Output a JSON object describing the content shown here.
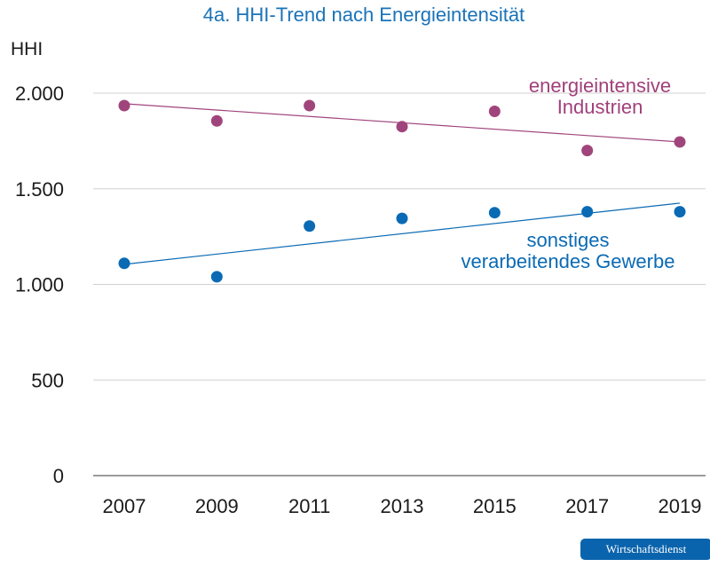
{
  "chart_data": {
    "type": "scatter",
    "title": "4a. HHI-Trend nach Energieintensität",
    "ylabel": "HHI",
    "xlabel": "",
    "x": [
      2007,
      2009,
      2011,
      2013,
      2015,
      2017,
      2019
    ],
    "x_tick_labels": [
      "2007",
      "2009",
      "2011",
      "2013",
      "2015",
      "2017",
      "2019"
    ],
    "ylim": [
      0,
      2000
    ],
    "y_ticks": [
      0,
      500,
      1000,
      1500,
      2000
    ],
    "y_tick_labels": [
      "0",
      "500",
      "1.000",
      "1.500",
      "2.000"
    ],
    "grid": "horizontal",
    "series": [
      {
        "name": "energieintensive Industrien",
        "label_lines": [
          "energieintensive",
          "Industrien"
        ],
        "color": "#a0457c",
        "values": [
          1935,
          1855,
          1935,
          1825,
          1905,
          1700,
          1745
        ],
        "trend": [
          1945,
          1745
        ]
      },
      {
        "name": "sonstiges verarbeitendes Gewerbe",
        "label_lines": [
          "sonstiges",
          "verarbeitendes Gewerbe"
        ],
        "color": "#0a6ab4",
        "values": [
          1110,
          1040,
          1305,
          1345,
          1375,
          1380,
          1380
        ],
        "trend": [
          1105,
          1425
        ]
      }
    ]
  },
  "badge": {
    "text": "Wirtschaftsdienst"
  }
}
